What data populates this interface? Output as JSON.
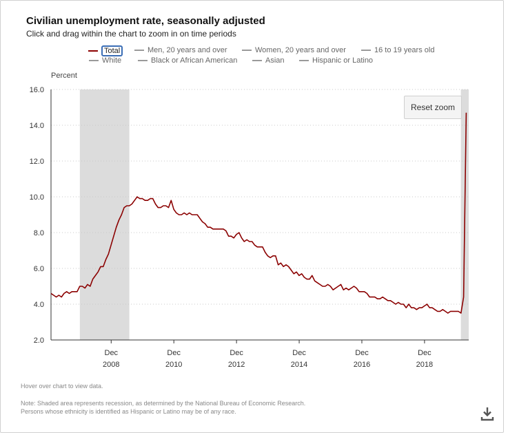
{
  "header": {
    "title": "Civilian unemployment rate, seasonally adjusted",
    "subtitle": "Click and drag within the chart to zoom in on time periods"
  },
  "legend": {
    "items": [
      {
        "label": "Total",
        "active": true
      },
      {
        "label": "Men, 20 years and over",
        "active": false
      },
      {
        "label": "Women, 20 years and over",
        "active": false
      },
      {
        "label": "16 to 19 years old",
        "active": false
      },
      {
        "label": "White",
        "active": false
      },
      {
        "label": "Black or African American",
        "active": false
      },
      {
        "label": "Asian",
        "active": false
      },
      {
        "label": "Hispanic or Latino",
        "active": false
      }
    ]
  },
  "controls": {
    "reset_zoom_label": "Reset zoom",
    "download_icon": "download-icon"
  },
  "footer": {
    "hover_note": "Hover over chart to view data.",
    "note_line1": "Note: Shaded area represents recession, as determined by the National Bureau of Economic Research.",
    "note_line2": "Persons whose ethnicity is identified as Hispanic or Latino may be of any race."
  },
  "colors": {
    "series": "#8b0000",
    "recession": "#dcdcdc",
    "grid": "#c8c8c8",
    "focus_ring": "#3a6db5"
  },
  "chart_data": {
    "type": "line",
    "title": "Civilian unemployment rate, seasonally adjusted",
    "ylabel": "Percent",
    "xlabel": "",
    "ylim": [
      2.0,
      16.0
    ],
    "yticks": [
      "2.0",
      "4.0",
      "6.0",
      "8.0",
      "10.0",
      "12.0",
      "14.0",
      "16.0"
    ],
    "xlim": [
      2007.0,
      2020.33
    ],
    "xticks": [
      {
        "month": "Dec",
        "year": "2008",
        "x": 2008.92
      },
      {
        "month": "Dec",
        "year": "2010",
        "x": 2010.92
      },
      {
        "month": "Dec",
        "year": "2012",
        "x": 2012.92
      },
      {
        "month": "Dec",
        "year": "2014",
        "x": 2014.92
      },
      {
        "month": "Dec",
        "year": "2016",
        "x": 2016.92
      },
      {
        "month": "Dec",
        "year": "2018",
        "x": 2018.92
      }
    ],
    "recessions": [
      {
        "start": 2007.92,
        "end": 2009.5
      },
      {
        "start": 2020.08,
        "end": 2020.33
      }
    ],
    "series": [
      {
        "name": "Total",
        "x_start": 2007.0,
        "x_step": 0.083333,
        "values": [
          4.6,
          4.5,
          4.4,
          4.5,
          4.4,
          4.6,
          4.7,
          4.6,
          4.7,
          4.7,
          4.7,
          5.0,
          5.0,
          4.9,
          5.1,
          5.0,
          5.4,
          5.6,
          5.8,
          6.1,
          6.1,
          6.5,
          6.8,
          7.3,
          7.8,
          8.3,
          8.7,
          9.0,
          9.4,
          9.5,
          9.5,
          9.6,
          9.8,
          10.0,
          9.9,
          9.9,
          9.8,
          9.8,
          9.9,
          9.9,
          9.6,
          9.4,
          9.4,
          9.5,
          9.5,
          9.4,
          9.8,
          9.3,
          9.1,
          9.0,
          9.0,
          9.1,
          9.0,
          9.1,
          9.0,
          9.0,
          9.0,
          8.8,
          8.6,
          8.5,
          8.3,
          8.3,
          8.2,
          8.2,
          8.2,
          8.2,
          8.2,
          8.1,
          7.8,
          7.8,
          7.7,
          7.9,
          8.0,
          7.7,
          7.5,
          7.6,
          7.5,
          7.5,
          7.3,
          7.2,
          7.2,
          7.2,
          6.9,
          6.7,
          6.6,
          6.7,
          6.7,
          6.2,
          6.3,
          6.1,
          6.2,
          6.1,
          5.9,
          5.7,
          5.8,
          5.6,
          5.7,
          5.5,
          5.4,
          5.4,
          5.6,
          5.3,
          5.2,
          5.1,
          5.0,
          5.0,
          5.1,
          5.0,
          4.8,
          4.9,
          5.0,
          5.1,
          4.8,
          4.9,
          4.8,
          4.9,
          5.0,
          4.9,
          4.7,
          4.7,
          4.7,
          4.6,
          4.4,
          4.4,
          4.4,
          4.3,
          4.3,
          4.4,
          4.3,
          4.2,
          4.2,
          4.1,
          4.0,
          4.1,
          4.0,
          4.0,
          3.8,
          4.0,
          3.8,
          3.8,
          3.7,
          3.8,
          3.8,
          3.9,
          4.0,
          3.8,
          3.8,
          3.7,
          3.6,
          3.6,
          3.7,
          3.6,
          3.5,
          3.6,
          3.6,
          3.6,
          3.6,
          3.5,
          4.4,
          14.7
        ]
      }
    ]
  }
}
